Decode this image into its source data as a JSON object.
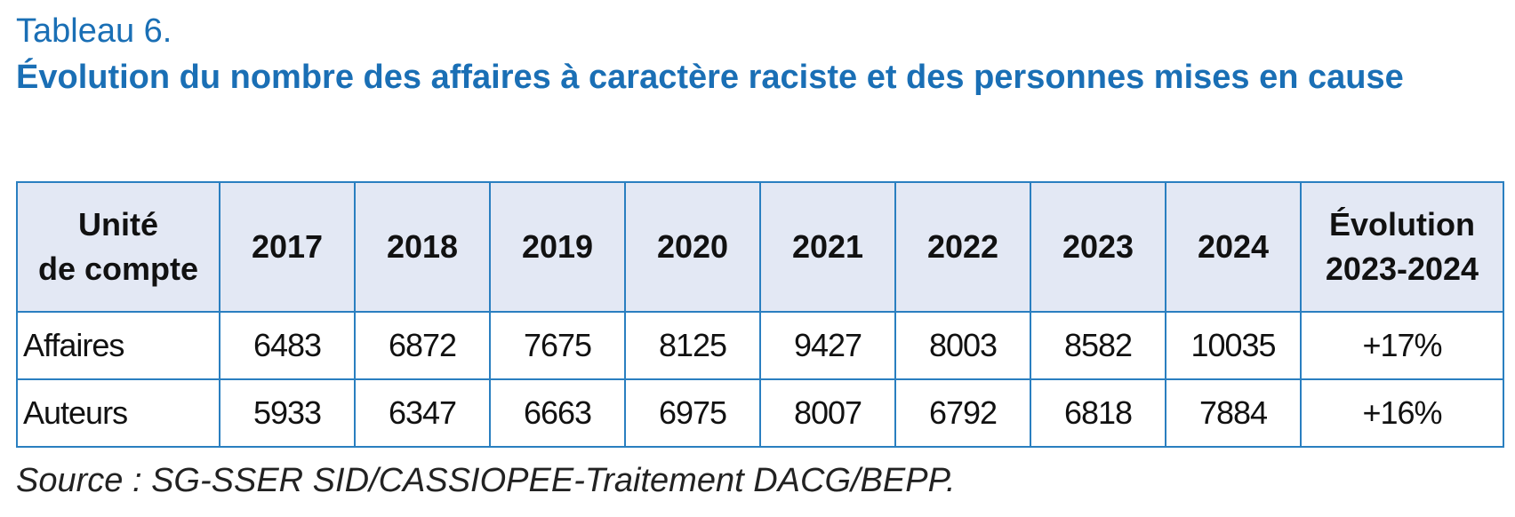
{
  "table_label": "Tableau 6.",
  "title": "Évolution du nombre des affaires à caractère raciste et des personnes mises en cause",
  "table": {
    "headers": [
      "Unité\nde compte",
      "2017",
      "2018",
      "2019",
      "2020",
      "2021",
      "2022",
      "2023",
      "2024",
      "Évolution\n2023-2024"
    ],
    "rows": [
      [
        "Affaires",
        "6483",
        "6872",
        "7675",
        "8125",
        "9427",
        "8003",
        "8582",
        "10035",
        "+17%"
      ],
      [
        "Auteurs",
        "5933",
        "6347",
        "6663",
        "6975",
        "8007",
        "6792",
        "6818",
        "7884",
        "+16%"
      ]
    ]
  },
  "source": "Source : SG-SSER SID/CASSIOPEE-Traitement DACG/BEPP.",
  "colors": {
    "title": "#1a6fb5",
    "border": "#2a7fc0",
    "header_bg": "#e3e8f4",
    "text": "#111111"
  }
}
